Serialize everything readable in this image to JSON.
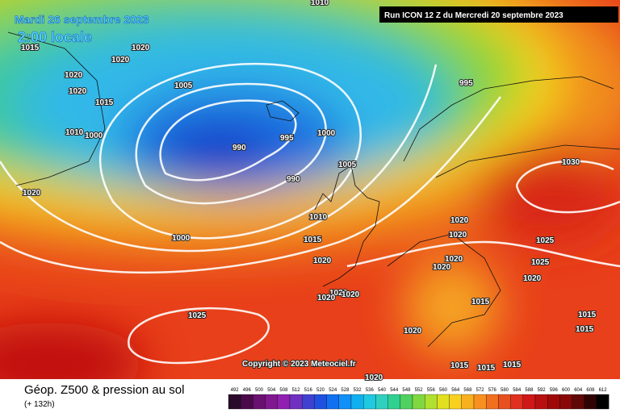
{
  "header": {
    "date": "Mardi 26 septembre 2023",
    "time": "2:00 locale",
    "run": "Run ICON 12 Z du Mercredi 20 septembre 2023"
  },
  "copyright": "Copyright © 2023 Meteociel.fr",
  "footer": {
    "title": "Géop. Z500 & pression au sol",
    "lead": "(+ 132h)"
  },
  "scale": {
    "values": [
      492,
      496,
      500,
      504,
      508,
      512,
      516,
      520,
      524,
      528,
      532,
      536,
      540,
      544,
      548,
      552,
      556,
      560,
      564,
      568,
      572,
      576,
      580,
      584,
      588,
      592,
      596,
      600,
      604,
      608,
      612
    ]
  },
  "isobars": [
    "1010",
    "1015",
    "1020",
    "1020",
    "1020",
    "1020",
    "1005",
    "1015",
    "995",
    "1010",
    "1000",
    "995",
    "1000",
    "990",
    "990",
    "1005",
    "1030",
    "1020",
    "1010",
    "1020",
    "1020",
    "1000",
    "1015",
    "1025",
    "1020",
    "1020",
    "1020",
    "1025",
    "1020",
    "1020",
    "1020",
    "1020",
    "1015",
    "1025",
    "1015",
    "1020",
    "1015",
    "1015",
    "1015",
    "1015",
    "1020"
  ]
}
